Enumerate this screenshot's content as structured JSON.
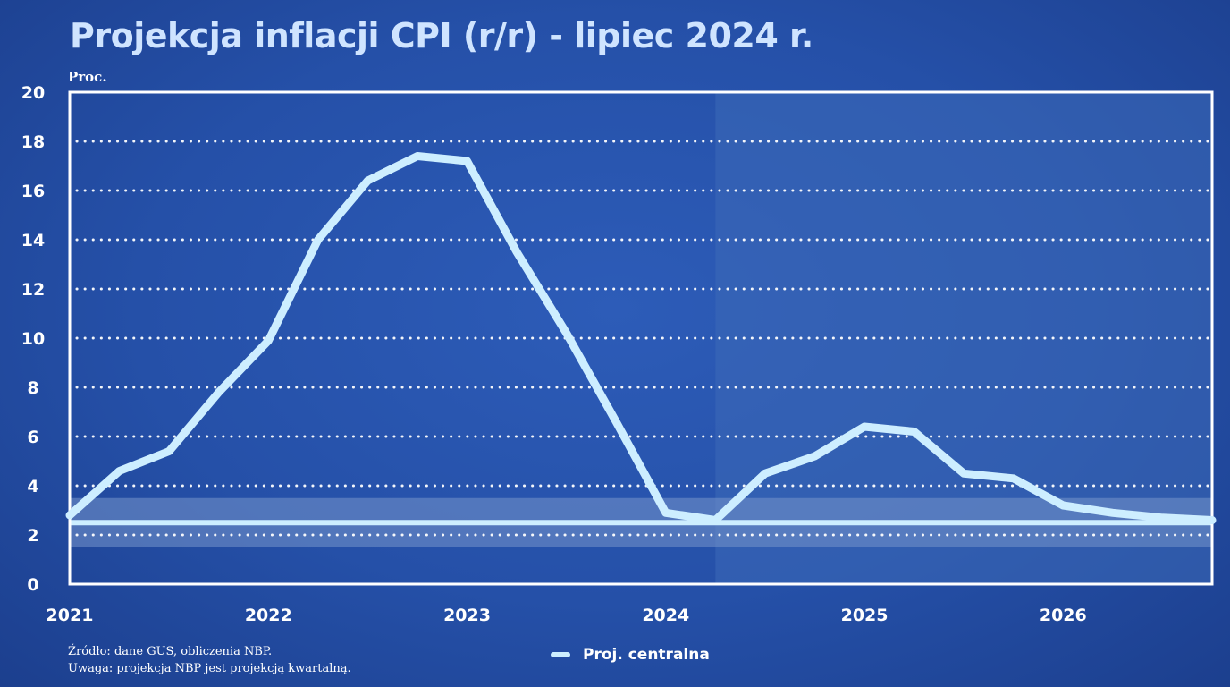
{
  "header": {
    "title": "Projekcja inflacji CPI (r/r) - lipiec 2024 r.",
    "unit": "Proc."
  },
  "footer": {
    "source": "Źródło: dane GUS, obliczenia NBP.",
    "note": "Uwaga: projekcja NBP jest projekcją kwartalną."
  },
  "legend": {
    "central": "Proj. centralna"
  },
  "colors": {
    "background": "#2450a8",
    "line": "#cdeeff",
    "frame": "#ffffff",
    "projection_shade": "#3d6ab8",
    "target_band": "#6f8fc8"
  },
  "chart_data": {
    "type": "line",
    "title": "Projekcja inflacji CPI (r/r) - lipiec 2024 r.",
    "ylabel": "Proc.",
    "xlabel": "",
    "ylim": [
      0,
      20
    ],
    "xlim": [
      2021.0,
      2026.75
    ],
    "yticks": [
      "0",
      "2",
      "4",
      "6",
      "8",
      "10",
      "12",
      "14",
      "16",
      "18",
      "20"
    ],
    "xticks": [
      "2021",
      "2022",
      "2023",
      "2024",
      "2025",
      "2026"
    ],
    "grid": "horizontal dotted",
    "legend_position": "bottom-center",
    "projection_start": 2024.25,
    "target_band": [
      1.5,
      3.5
    ],
    "target_line": 2.5,
    "series": [
      {
        "name": "Proj. centralna",
        "x": [
          2021.0,
          2021.25,
          2021.5,
          2021.75,
          2022.0,
          2022.25,
          2022.5,
          2022.75,
          2023.0,
          2023.25,
          2023.5,
          2023.75,
          2024.0,
          2024.25,
          2024.5,
          2024.75,
          2025.0,
          2025.25,
          2025.5,
          2025.75,
          2026.0,
          2026.25,
          2026.5,
          2026.75
        ],
        "values": [
          2.8,
          4.6,
          5.4,
          7.8,
          9.9,
          14.0,
          16.4,
          17.4,
          17.2,
          13.5,
          10.2,
          6.6,
          2.9,
          2.6,
          4.5,
          5.2,
          6.4,
          6.2,
          4.5,
          4.3,
          3.2,
          2.9,
          2.7,
          2.6
        ]
      }
    ]
  }
}
